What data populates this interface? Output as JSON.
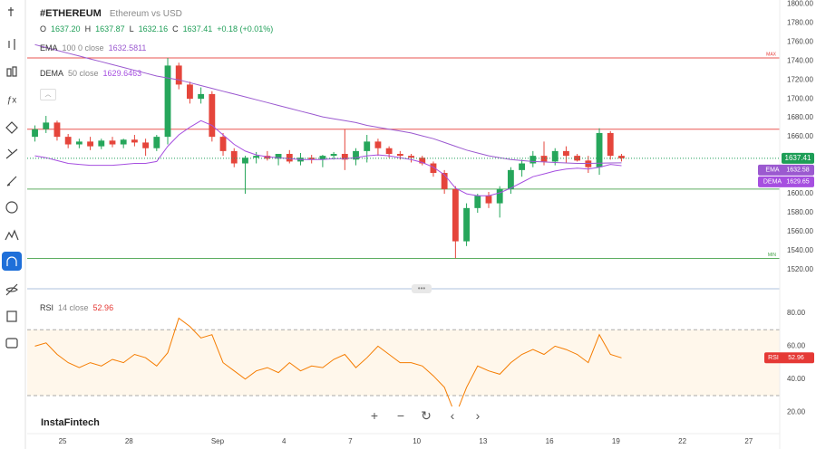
{
  "header": {
    "symbol": "#ETHEREUM",
    "name": "Ethereum vs USD",
    "ohlc": [
      {
        "label": "O",
        "value": "1637.20"
      },
      {
        "label": "H",
        "value": "1637.87"
      },
      {
        "label": "L",
        "value": "1632.16"
      },
      {
        "label": "C",
        "value": "1637.41"
      }
    ],
    "change": "+0.18 (+0.01%)"
  },
  "logo": "InstaFintech",
  "chart_data": {
    "type": "candlestick",
    "x": [
      -0.25,
      0.25,
      0.75,
      1.25,
      1.75,
      2.25,
      2.75,
      3.25,
      3.75,
      4.25,
      4.75,
      5.25,
      5.75,
      6.25,
      6.75,
      7.25,
      7.75,
      8.25,
      8.75,
      9.25,
      9.75,
      10.25,
      10.75,
      11.25,
      11.75,
      12.25,
      12.75,
      13.25,
      13.75,
      14.25,
      14.75,
      15.25,
      15.75,
      16.25,
      16.75,
      17.25,
      17.75,
      18.25,
      18.75,
      19.25,
      19.75,
      20.25,
      20.75,
      21.25,
      21.75,
      22.25,
      22.75,
      23.25,
      23.75,
      24.25,
      24.75,
      25.25,
      25.75,
      26.25
    ],
    "open": [
      1660,
      1668,
      1675,
      1660,
      1652,
      1655,
      1650,
      1656,
      1652,
      1657,
      1654,
      1648,
      1660,
      1735,
      1715,
      1700,
      1705,
      1660,
      1645,
      1632,
      1638,
      1640,
      1637,
      1642,
      1634,
      1638,
      1636,
      1640,
      1642,
      1636,
      1645,
      1655,
      1648,
      1642,
      1640,
      1638,
      1632,
      1622,
      1605,
      1550,
      1585,
      1598,
      1590,
      1605,
      1625,
      1632,
      1640,
      1634,
      1645,
      1640,
      1635,
      1628,
      1664,
      1640
    ],
    "high": [
      1672,
      1682,
      1677,
      1663,
      1658,
      1660,
      1658,
      1660,
      1658,
      1662,
      1658,
      1662,
      1743,
      1738,
      1718,
      1712,
      1708,
      1664,
      1648,
      1640,
      1644,
      1645,
      1642,
      1646,
      1643,
      1641,
      1641,
      1644,
      1668,
      1648,
      1662,
      1658,
      1650,
      1645,
      1642,
      1640,
      1634,
      1625,
      1608,
      1590,
      1600,
      1602,
      1608,
      1628,
      1636,
      1645,
      1655,
      1648,
      1650,
      1642,
      1640,
      1669,
      1666,
      1642
    ],
    "low": [
      1655,
      1664,
      1656,
      1648,
      1648,
      1646,
      1647,
      1649,
      1648,
      1650,
      1640,
      1645,
      1652,
      1710,
      1695,
      1695,
      1655,
      1640,
      1628,
      1600,
      1632,
      1635,
      1630,
      1632,
      1630,
      1632,
      1628,
      1636,
      1625,
      1630,
      1633,
      1640,
      1638,
      1636,
      1633,
      1630,
      1618,
      1600,
      1532,
      1545,
      1580,
      1585,
      1575,
      1600,
      1618,
      1628,
      1630,
      1630,
      1632,
      1634,
      1622,
      1620,
      1636,
      1634
    ],
    "close": [
      1668,
      1675,
      1660,
      1652,
      1655,
      1650,
      1656,
      1652,
      1657,
      1654,
      1648,
      1660,
      1735,
      1715,
      1700,
      1705,
      1660,
      1645,
      1632,
      1638,
      1640,
      1637,
      1642,
      1634,
      1638,
      1636,
      1640,
      1642,
      1636,
      1645,
      1655,
      1648,
      1642,
      1640,
      1638,
      1632,
      1622,
      1605,
      1550,
      1585,
      1598,
      1590,
      1605,
      1625,
      1632,
      1640,
      1634,
      1645,
      1640,
      1635,
      1628,
      1664,
      1640,
      1637.41
    ],
    "up_color": "#26a65b",
    "down_color": "#e5453b",
    "last_color": "#1e9e57",
    "series": [
      {
        "name": "EMA",
        "params": "100 0 close",
        "tag": "1632.58",
        "color": "#9b59d0",
        "values": [
          1757,
          1754,
          1751,
          1748,
          1745,
          1742,
          1739,
          1736,
          1733,
          1730,
          1727,
          1724,
          1722,
          1720,
          1717,
          1714,
          1711,
          1708,
          1705,
          1702,
          1699,
          1696,
          1693,
          1690,
          1687,
          1684,
          1681,
          1679,
          1677,
          1675,
          1672,
          1670,
          1668,
          1666,
          1664,
          1661,
          1658,
          1654,
          1650,
          1646,
          1643,
          1640,
          1638,
          1636,
          1635,
          1634,
          1633.5,
          1633,
          1632.5,
          1632,
          1632,
          1632.3,
          1632.5,
          1632.5811
        ]
      },
      {
        "name": "DEMA",
        "params": "50 close",
        "tag": "1629.65",
        "color": "#a64fe0",
        "values": [
          1640,
          1638,
          1635,
          1632,
          1631,
          1630,
          1630,
          1630,
          1631,
          1632,
          1632,
          1634,
          1650,
          1662,
          1670,
          1677,
          1672,
          1662,
          1652,
          1645,
          1641,
          1639,
          1638,
          1637,
          1636,
          1636,
          1636,
          1637,
          1637,
          1638,
          1640,
          1641,
          1640,
          1638,
          1636,
          1633,
          1628,
          1620,
          1606,
          1600,
          1598,
          1598,
          1601,
          1606,
          1612,
          1618,
          1621,
          1624,
          1626,
          1627,
          1626,
          1628,
          1631,
          1629.6463
        ]
      }
    ],
    "levels": [
      {
        "value": 1743,
        "color": "#e53935",
        "label": "MAX"
      },
      {
        "value": 1668,
        "color": "#e53935"
      },
      {
        "value": 1605,
        "color": "#43a047"
      },
      {
        "value": 1532,
        "color": "#43a047",
        "label": "MIN"
      }
    ],
    "xlim": [
      -0.6,
      33.4
    ],
    "xticks": [
      {
        "value": 1,
        "label": "25"
      },
      {
        "value": 4,
        "label": "28"
      },
      {
        "value": 8,
        "label": "Sep"
      },
      {
        "value": 11,
        "label": "4"
      },
      {
        "value": 14,
        "label": "7"
      },
      {
        "value": 17,
        "label": "10"
      },
      {
        "value": 20,
        "label": "13"
      },
      {
        "value": 23,
        "label": "16"
      },
      {
        "value": 26,
        "label": "19"
      },
      {
        "value": 29,
        "label": "22"
      },
      {
        "value": 32,
        "label": "27"
      }
    ],
    "ylim": [
      1501,
      1804
    ],
    "yticks": [
      {
        "value": 1800,
        "label": "1800.00"
      },
      {
        "value": 1780,
        "label": "1780.00"
      },
      {
        "value": 1760,
        "label": "1760.00"
      },
      {
        "value": 1740,
        "label": "1740.00"
      },
      {
        "value": 1720,
        "label": "1720.00"
      },
      {
        "value": 1700,
        "label": "1700.00"
      },
      {
        "value": 1680,
        "label": "1680.00"
      },
      {
        "value": 1660,
        "label": "1660.00"
      },
      {
        "value": 1600,
        "label": "1600.00"
      },
      {
        "value": 1580,
        "label": "1580.00"
      },
      {
        "value": 1560,
        "label": "1560.00"
      },
      {
        "value": 1540,
        "label": "1540.00"
      },
      {
        "value": 1520,
        "label": "1520.00"
      }
    ],
    "rsi": {
      "name": "RSI",
      "params": "14 close",
      "color": "#f57c00",
      "tag_color": "#e53935",
      "values": [
        60,
        62,
        55,
        50,
        47,
        50,
        48,
        52,
        50,
        55,
        53,
        48,
        56,
        77,
        72,
        65,
        67,
        50,
        45,
        40,
        45,
        47,
        44,
        50,
        45,
        48,
        47,
        52,
        55,
        47,
        53,
        60,
        55,
        50,
        50,
        48,
        42,
        35,
        18,
        35,
        48,
        45,
        43,
        50,
        55,
        58,
        55,
        60,
        58,
        55,
        50,
        67,
        55,
        52.96
      ],
      "bands": [
        30,
        70
      ],
      "ylim": [
        7.5,
        94.3
      ],
      "yticks": [
        {
          "value": 80,
          "label": "80.00"
        },
        {
          "value": 60,
          "label": "60.00"
        },
        {
          "value": 40,
          "label": "40.00"
        },
        {
          "value": 20,
          "label": "20.00"
        }
      ]
    }
  }
}
